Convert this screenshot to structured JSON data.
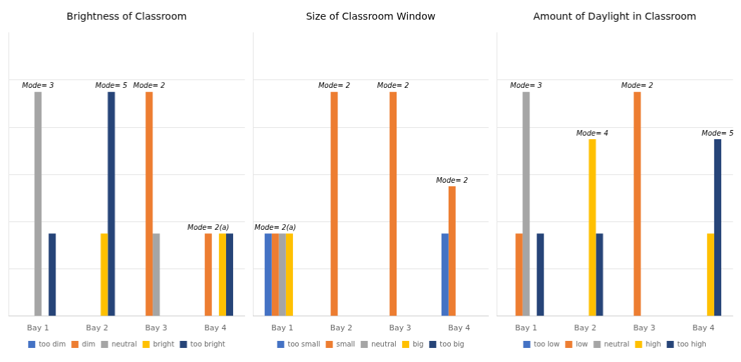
{
  "chart_data": [
    {
      "type": "bar",
      "title": "Brightness of Classroom",
      "categories": [
        "Bay 1",
        "Bay 2",
        "Bay 3",
        "Bay 4"
      ],
      "series": [
        {
          "name": "too dim",
          "color": "#4472C4",
          "values": [
            0,
            0,
            0,
            0
          ]
        },
        {
          "name": "dim",
          "color": "#ED7D31",
          "values": [
            0,
            0,
            9.5,
            3.5
          ]
        },
        {
          "name": "neutral",
          "color": "#A5A5A5",
          "values": [
            9.5,
            0,
            3.5,
            0
          ]
        },
        {
          "name": "bright",
          "color": "#FFC000",
          "values": [
            0,
            3.5,
            0,
            3.5
          ]
        },
        {
          "name": "too bright",
          "color": "#264478",
          "values": [
            3.5,
            9.5,
            0,
            3.5
          ]
        }
      ],
      "annotations": [
        {
          "text": "Mode= 3",
          "category": "Bay 1",
          "series": "neutral"
        },
        {
          "text": "Mode= 5",
          "category": "Bay 2",
          "series": "too bright"
        },
        {
          "text": "Mode= 2",
          "category": "Bay 3",
          "series": "dim"
        },
        {
          "text": "Mode= 2(a)",
          "category": "Bay 4",
          "series": "dim"
        }
      ],
      "ylim": [
        0,
        12.0
      ],
      "yticks": [
        0,
        2,
        4,
        6,
        8,
        10
      ],
      "grid": true,
      "legend": "bottom",
      "tick_labels": "x"
    },
    {
      "type": "bar",
      "title": "Size of Classroom Window",
      "categories": [
        "Bay 1",
        "Bay 2",
        "Bay 3",
        "Bay 4"
      ],
      "series": [
        {
          "name": "too small",
          "color": "#4472C4",
          "values": [
            3.5,
            0,
            0,
            3.5
          ]
        },
        {
          "name": "small",
          "color": "#ED7D31",
          "values": [
            3.5,
            9.5,
            9.5,
            5.5
          ]
        },
        {
          "name": "neutral",
          "color": "#A5A5A5",
          "values": [
            3.5,
            0,
            0,
            0
          ]
        },
        {
          "name": "big",
          "color": "#FFC000",
          "values": [
            3.5,
            0,
            0,
            0
          ]
        },
        {
          "name": "too big",
          "color": "#264478",
          "values": [
            0,
            0,
            0,
            0
          ]
        }
      ],
      "annotations": [
        {
          "text": "Mode= 2(a)",
          "category": "Bay 1",
          "series": "small"
        },
        {
          "text": "Mode= 2",
          "category": "Bay 2",
          "series": "small"
        },
        {
          "text": "Mode= 2",
          "category": "Bay 3",
          "series": "small"
        },
        {
          "text": "Mode= 2",
          "category": "Bay 4",
          "series": "small"
        }
      ],
      "ylim": [
        0,
        12.0
      ],
      "yticks": [
        0,
        2,
        4,
        6,
        8,
        10
      ],
      "grid": true,
      "legend": "bottom",
      "tick_labels": "x"
    },
    {
      "type": "bar",
      "title": "Amount of Daylight in Classroom",
      "categories": [
        "Bay 1",
        "Bay 2",
        "Bay 3",
        "Bay 4"
      ],
      "series": [
        {
          "name": "too low",
          "color": "#4472C4",
          "values": [
            0,
            0,
            0,
            0
          ]
        },
        {
          "name": "low",
          "color": "#ED7D31",
          "values": [
            3.5,
            0,
            9.5,
            0
          ]
        },
        {
          "name": "neutral",
          "color": "#A5A5A5",
          "values": [
            9.5,
            0,
            0,
            0
          ]
        },
        {
          "name": "high",
          "color": "#FFC000",
          "values": [
            0,
            7.5,
            0,
            3.5
          ]
        },
        {
          "name": "too high",
          "color": "#264478",
          "values": [
            3.5,
            3.5,
            0,
            7.5
          ]
        }
      ],
      "annotations": [
        {
          "text": "Mode= 3",
          "category": "Bay 1",
          "series": "neutral"
        },
        {
          "text": "Mode= 4",
          "category": "Bay 2",
          "series": "high"
        },
        {
          "text": "Mode= 2",
          "category": "Bay 3",
          "series": "low"
        },
        {
          "text": "Mode= 5",
          "category": "Bay 4",
          "series": "too high"
        }
      ],
      "ylim": [
        0,
        12.0
      ],
      "yticks": [
        0,
        2,
        4,
        6,
        8,
        10
      ],
      "grid": true,
      "legend": "bottom",
      "tick_labels": "x"
    }
  ]
}
